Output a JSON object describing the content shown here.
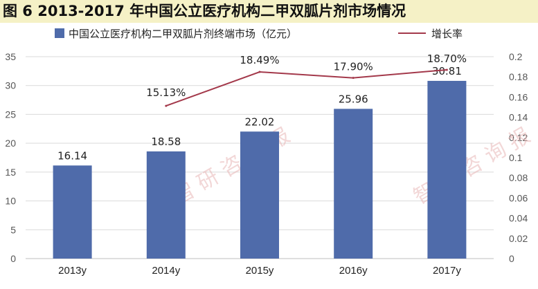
{
  "title": "图 6   2013-2017 年中国公立医疗机构二甲双胍片剂市场情况",
  "watermarks": [
    "智 研 咨 询 报",
    "智 研 咨 询 报"
  ],
  "colors": {
    "bar": "#4f6baa",
    "line": "#a3384a",
    "banner": "#f5f1c6"
  },
  "chart_data": {
    "type": "bar",
    "categories": [
      "2013y",
      "2014y",
      "2015y",
      "2016y",
      "2017y"
    ],
    "series": [
      {
        "name": "中国公立医疗机构二甲双胍片剂终端市场（亿元）",
        "type": "bar",
        "axis": "left",
        "values": [
          16.14,
          18.58,
          22.02,
          25.96,
          30.81
        ],
        "labels": [
          "16.14",
          "18.58",
          "22.02",
          "25.96",
          "30.81"
        ]
      },
      {
        "name": "增长率",
        "type": "line",
        "axis": "right",
        "values": [
          null,
          0.1513,
          0.1849,
          0.179,
          0.187
        ],
        "labels": [
          "",
          "15.13%",
          "18.49%",
          "17.90%",
          "18.70%"
        ]
      }
    ],
    "ylim_left": [
      0,
      35
    ],
    "yticks_left": [
      "0",
      "5",
      "10",
      "15",
      "20",
      "25",
      "30",
      "35"
    ],
    "ylim_right": [
      0,
      0.2
    ],
    "yticks_right": [
      "0",
      "0.02",
      "0.04",
      "0.06",
      "0.08",
      "0.1",
      "0.12",
      "0.14",
      "0.16",
      "0.18",
      "0.2"
    ],
    "legend_position": "top",
    "grid": true
  }
}
